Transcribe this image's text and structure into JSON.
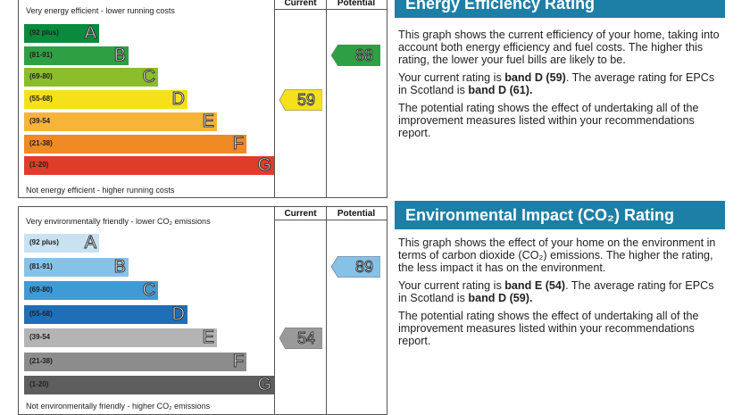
{
  "energy_chart": {
    "top_caption": "Very energy efficient - lower running costs",
    "bottom_caption": "Not energy efficient - higher running costs",
    "col_current": "Current",
    "col_potential": "Potential",
    "bands": [
      {
        "range": "(92 plus)",
        "letter": "A",
        "color": "#0a8a3c"
      },
      {
        "range": "(81-91)",
        "letter": "B",
        "color": "#2ea043"
      },
      {
        "range": "(69-80)",
        "letter": "C",
        "color": "#8cbd2b"
      },
      {
        "range": "(55-68)",
        "letter": "D",
        "color": "#f5e11a"
      },
      {
        "range": "(39-54",
        "letter": "E",
        "color": "#f7b33a"
      },
      {
        "range": "(21-38)",
        "letter": "F",
        "color": "#f08a24"
      },
      {
        "range": "(1-20)",
        "letter": "G",
        "color": "#e03c2c"
      }
    ],
    "current": {
      "value": "59",
      "band": "D",
      "color": "#f5e11a"
    },
    "potential": {
      "value": "88",
      "band": "B",
      "color": "#2ea043"
    }
  },
  "env_chart": {
    "top_caption": "Very environmentally friendly - lower CO₂ emissions",
    "bottom_caption": "Not environmentally friendly - higher CO₂ emissions",
    "col_current": "Current",
    "col_potential": "Potential",
    "bands": [
      {
        "range": "(92 plus)",
        "letter": "A",
        "color": "#c8e2f2"
      },
      {
        "range": "(81-91)",
        "letter": "B",
        "color": "#86c2e8"
      },
      {
        "range": "(69-80)",
        "letter": "C",
        "color": "#3f9ad6"
      },
      {
        "range": "(55-68)",
        "letter": "D",
        "color": "#1f6fb8"
      },
      {
        "range": "(39-54",
        "letter": "E",
        "color": "#b4b4b4"
      },
      {
        "range": "(21-38)",
        "letter": "F",
        "color": "#8c8c8c"
      },
      {
        "range": "(1-20)",
        "letter": "G",
        "color": "#5e5e5e"
      }
    ],
    "current": {
      "value": "54",
      "band": "E",
      "color": "#9a9a9a"
    },
    "potential": {
      "value": "89",
      "band": "B",
      "color": "#86c2e8"
    }
  },
  "energy_panel": {
    "title": "Energy Efficiency Rating",
    "p1": "This graph shows the current efficiency of your home, taking into account both energy efficiency and fuel costs. The higher this rating, the lower your fuel bills are likely to be.",
    "p2_pre": "Your current rating is ",
    "p2_band": "band D (59)",
    "p2_mid": ". The average rating for EPCs in Scotland is ",
    "p2_avg": "band D (61).",
    "p3": "The potential rating shows the effect of undertaking all of the improvement measures listed within your recommendations report."
  },
  "env_panel": {
    "title": "Environmental Impact (CO₂) Rating",
    "p1": "This graph shows the effect of your home on the environment in terms of carbon dioxide (CO₂) emissions. The higher the rating, the less impact it has on the environment.",
    "p2_pre": "Your current rating is ",
    "p2_band": "band E (54)",
    "p2_mid": ". The average rating for EPCs in Scotland is ",
    "p2_avg": "band D (59).",
    "p3": "The potential rating shows the effect of undertaking all of the improvement measures listed within your recommendations report."
  }
}
